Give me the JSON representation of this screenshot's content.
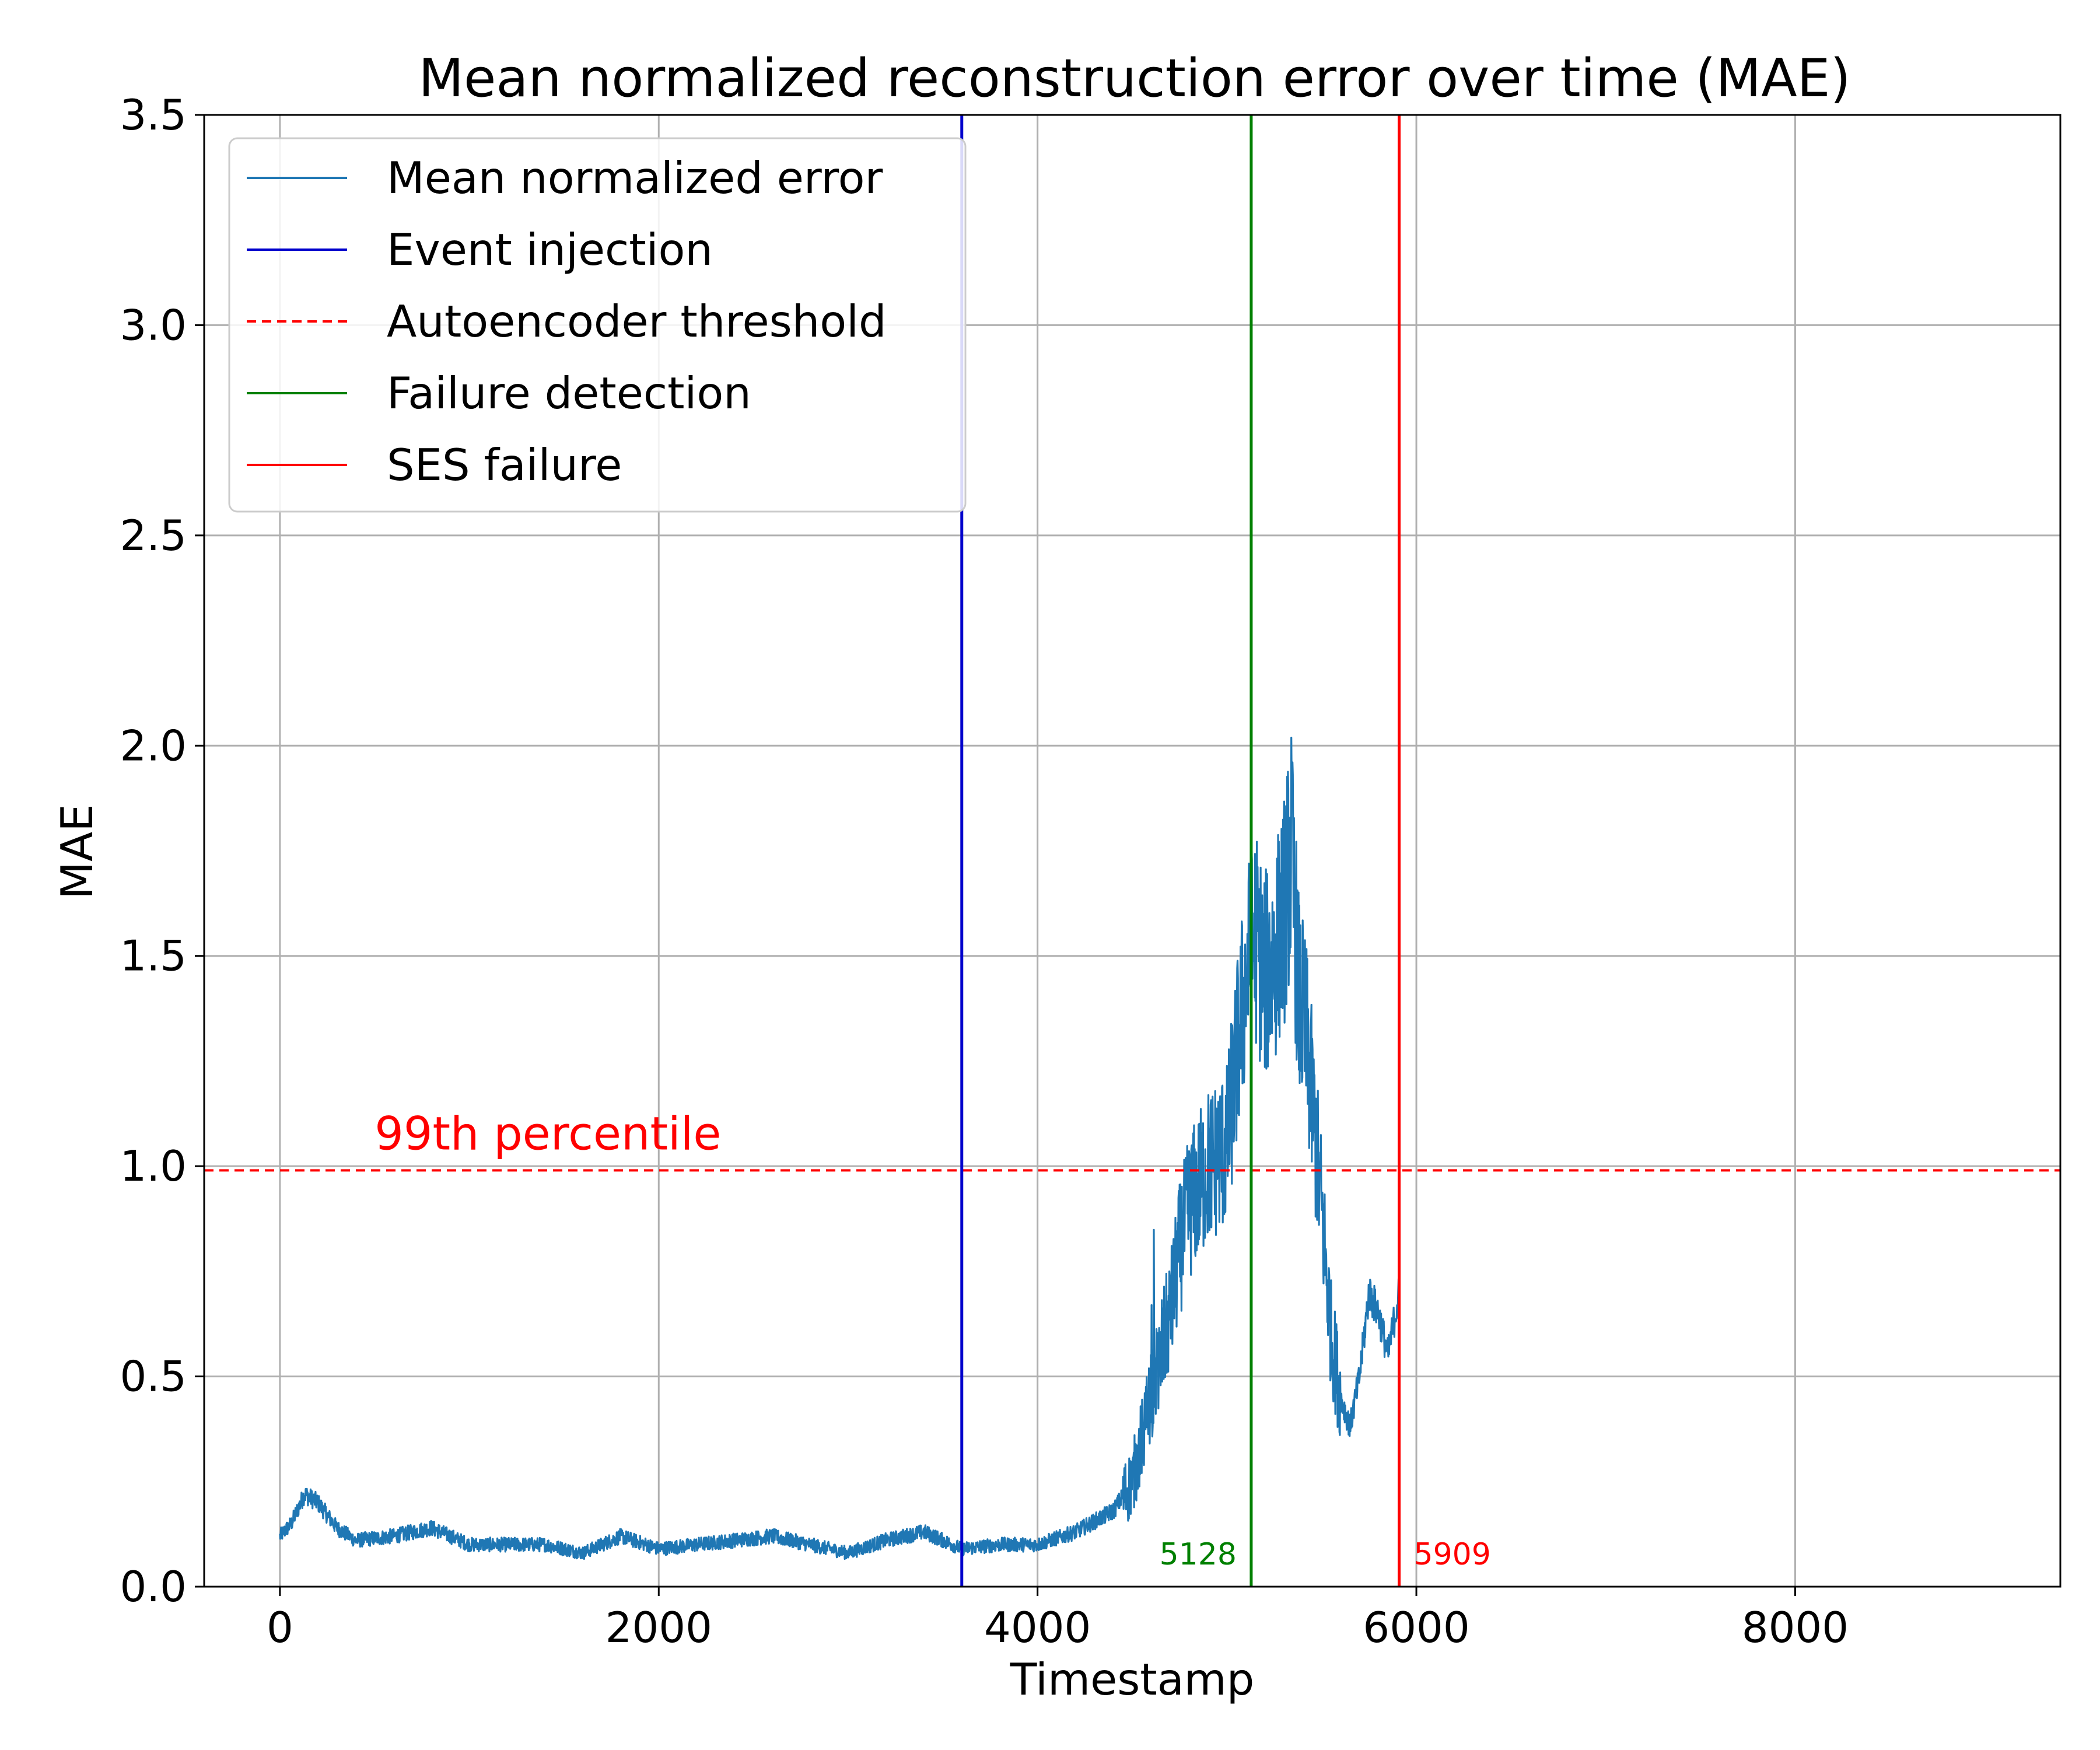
{
  "chart_data": {
    "type": "line",
    "title": "Mean normalized reconstruction error over time (MAE)",
    "xlabel": "Timestamp",
    "ylabel": "MAE",
    "xlim": [
      -400,
      9400
    ],
    "ylim": [
      0,
      3.5
    ],
    "xticks": [
      0,
      2000,
      4000,
      6000,
      8000
    ],
    "xtick_labels": [
      "0",
      "2000",
      "4000",
      "6000",
      "8000"
    ],
    "yticks": [
      0,
      0.5,
      1.0,
      1.5,
      2.0,
      2.5,
      3.0,
      3.5
    ],
    "ytick_labels": [
      "0.0",
      "0.5",
      "1.0",
      "1.5",
      "2.0",
      "2.5",
      "3.0",
      "3.5"
    ],
    "grid": true,
    "legend_position": "top-left",
    "series": [
      {
        "name": "Mean normalized error",
        "color": "#1f77b4",
        "x_start": 0,
        "x_end": 5909,
        "keypoints": [
          [
            0,
            0.12
          ],
          [
            60,
            0.15
          ],
          [
            130,
            0.22
          ],
          [
            200,
            0.2
          ],
          [
            300,
            0.14
          ],
          [
            400,
            0.11
          ],
          [
            600,
            0.12
          ],
          [
            800,
            0.14
          ],
          [
            1000,
            0.1
          ],
          [
            1200,
            0.1
          ],
          [
            1400,
            0.1
          ],
          [
            1600,
            0.08
          ],
          [
            1800,
            0.12
          ],
          [
            2000,
            0.09
          ],
          [
            2200,
            0.1
          ],
          [
            2400,
            0.11
          ],
          [
            2600,
            0.12
          ],
          [
            2800,
            0.1
          ],
          [
            3000,
            0.08
          ],
          [
            3200,
            0.11
          ],
          [
            3400,
            0.13
          ],
          [
            3600,
            0.09
          ],
          [
            3800,
            0.1
          ],
          [
            4000,
            0.1
          ],
          [
            4200,
            0.13
          ],
          [
            4400,
            0.18
          ],
          [
            4500,
            0.25
          ],
          [
            4550,
            0.35
          ],
          [
            4600,
            0.45
          ],
          [
            4650,
            0.55
          ],
          [
            4700,
            0.65
          ],
          [
            4750,
            0.8
          ],
          [
            4800,
            0.9
          ],
          [
            4850,
            0.95
          ],
          [
            4900,
            1.0
          ],
          [
            4950,
            1.02
          ],
          [
            5000,
            1.05
          ],
          [
            5050,
            1.25
          ],
          [
            5100,
            1.45
          ],
          [
            5150,
            1.55
          ],
          [
            5200,
            1.45
          ],
          [
            5250,
            1.5
          ],
          [
            5300,
            1.6
          ],
          [
            5340,
            1.75
          ],
          [
            5380,
            1.4
          ],
          [
            5420,
            1.3
          ],
          [
            5460,
            1.1
          ],
          [
            5500,
            0.9
          ],
          [
            5550,
            0.6
          ],
          [
            5600,
            0.45
          ],
          [
            5650,
            0.38
          ],
          [
            5700,
            0.5
          ],
          [
            5750,
            0.7
          ],
          [
            5800,
            0.65
          ],
          [
            5850,
            0.55
          ],
          [
            5909,
            0.7
          ]
        ]
      }
    ],
    "vlines": [
      {
        "name": "Event injection",
        "x": 3600,
        "color": "#0000cc"
      },
      {
        "name": "Failure detection",
        "x": 5128,
        "color": "#008000",
        "label": "5128"
      },
      {
        "name": "SES failure",
        "x": 5909,
        "color": "#ff0000",
        "label": "5909"
      }
    ],
    "hlines": [
      {
        "name": "Autoencoder threshold",
        "y": 0.99,
        "color": "#ff0000",
        "style": "dashed"
      }
    ],
    "annotations": [
      {
        "text": "99th percentile",
        "x": 500,
        "y": 1.04,
        "color": "#ff0000"
      }
    ],
    "legend": [
      {
        "label": "Mean normalized error",
        "color": "#1f77b4",
        "style": "solid"
      },
      {
        "label": "Event injection",
        "color": "#0000cc",
        "style": "solid"
      },
      {
        "label": "Autoencoder threshold",
        "color": "#ff0000",
        "style": "dashed"
      },
      {
        "label": "Failure detection",
        "color": "#008000",
        "style": "solid"
      },
      {
        "label": "SES failure",
        "color": "#ff0000",
        "style": "solid"
      }
    ]
  }
}
